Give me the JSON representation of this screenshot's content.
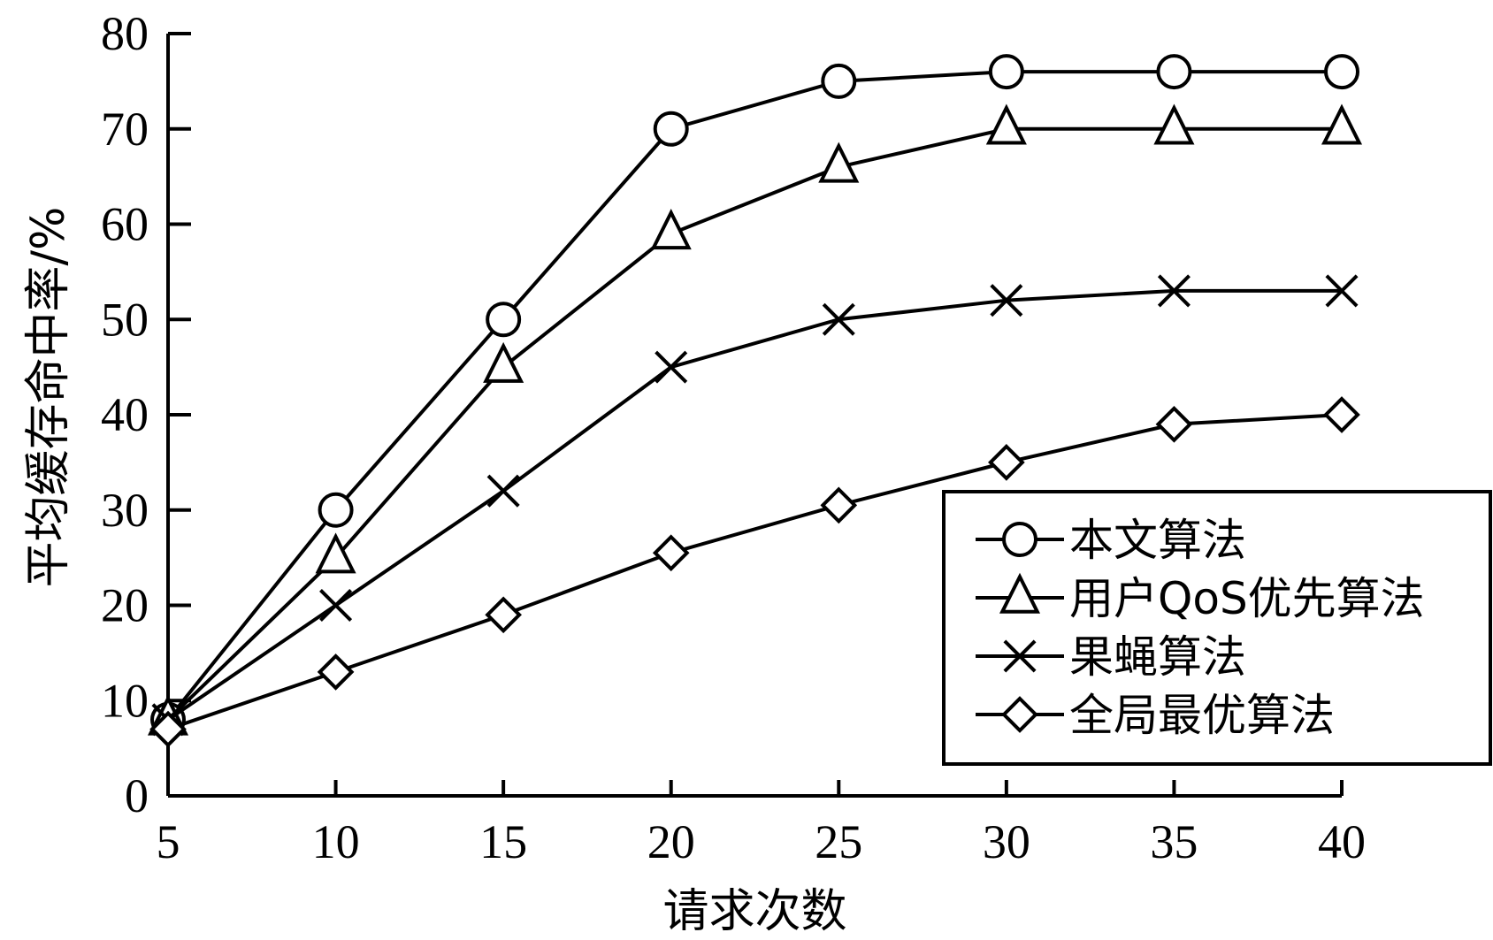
{
  "chart_data": {
    "type": "line",
    "xlabel": "请求次数",
    "ylabel": "平均缓存命中率/%",
    "x": [
      5,
      10,
      15,
      20,
      25,
      30,
      35,
      40
    ],
    "xlim": [
      5,
      40
    ],
    "ylim": [
      0,
      80
    ],
    "xticks": [
      5,
      10,
      15,
      20,
      25,
      30,
      35,
      40
    ],
    "yticks": [
      0,
      10,
      20,
      30,
      40,
      50,
      60,
      70,
      80
    ],
    "grid": false,
    "legend_position": "bottom-right",
    "series": [
      {
        "name": "本文算法",
        "marker": "circle",
        "values": [
          8,
          30,
          50,
          70,
          75,
          76,
          76,
          76
        ]
      },
      {
        "name": "用户QoS优先算法",
        "marker": "triangle",
        "values": [
          8,
          25,
          45,
          59,
          66,
          70,
          70,
          70
        ]
      },
      {
        "name": "果蝇算法",
        "marker": "x",
        "values": [
          8,
          20,
          32,
          45,
          50,
          52,
          53,
          53
        ]
      },
      {
        "name": "全局最优算法",
        "marker": "diamond",
        "values": [
          7,
          13,
          19,
          25.5,
          30.5,
          35,
          39,
          40
        ]
      }
    ]
  }
}
